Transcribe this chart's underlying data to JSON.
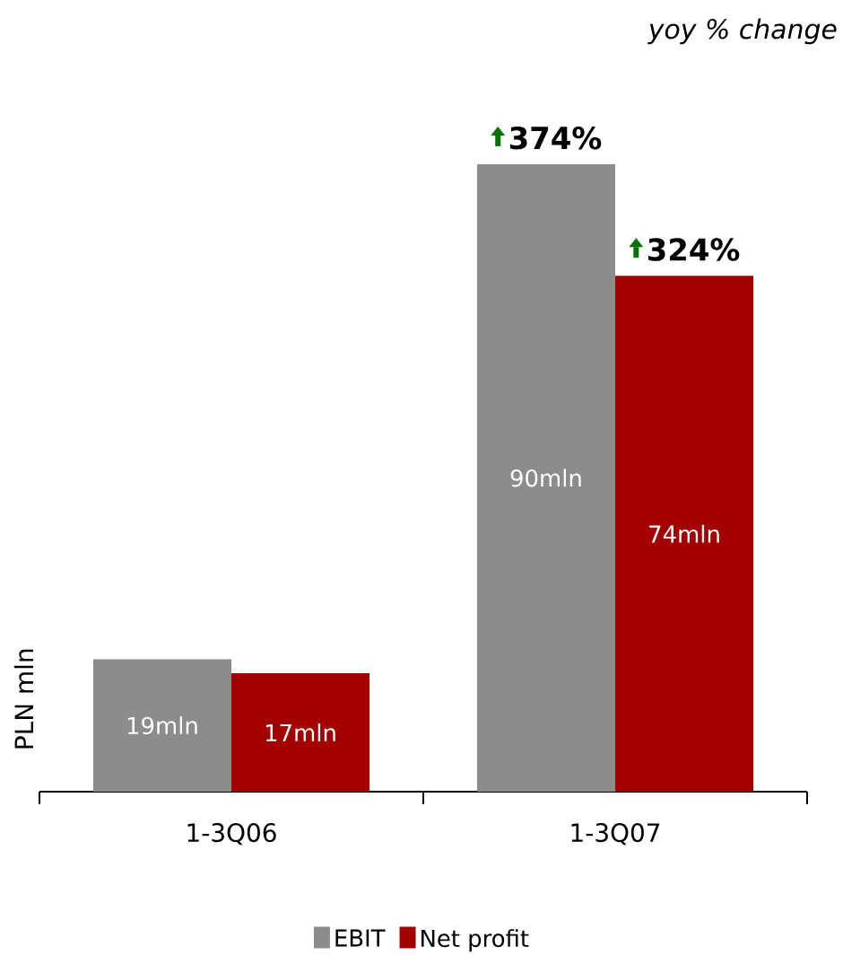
{
  "chart_data": {
    "type": "bar",
    "ylabel": "PLN mln",
    "categories": [
      "1-3Q06",
      "1-3Q07"
    ],
    "series": [
      {
        "name": "EBIT",
        "color": "#8c8c8c",
        "values": [
          19,
          90
        ],
        "value_labels": [
          "19mln",
          "90mln"
        ]
      },
      {
        "name": "Net profit",
        "color": "#a30000",
        "values": [
          17,
          74
        ],
        "value_labels": [
          "17mln",
          "74mln"
        ]
      }
    ],
    "annotations": [
      "yoy % change",
      {
        "text": "374%",
        "x": "1-3Q07",
        "y": 90
      },
      {
        "text": "324%",
        "x": "1-3Q07",
        "y": 74
      }
    ],
    "legend": "bottom"
  }
}
